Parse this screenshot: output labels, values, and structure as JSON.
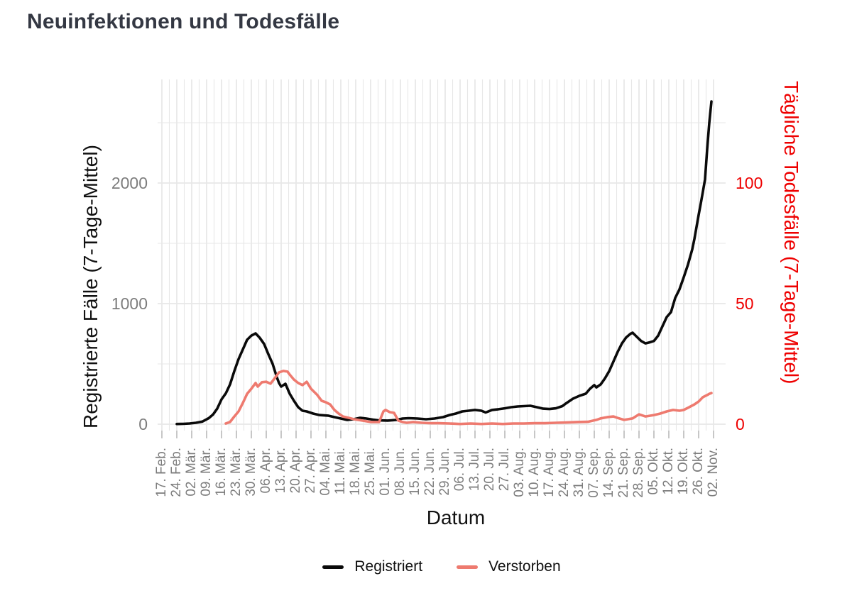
{
  "chart_data": {
    "type": "line",
    "title": "Neuinfektionen und Todesfälle",
    "x_axis": {
      "label": "Datum",
      "tick_labels": [
        "17. Feb.",
        "24. Feb.",
        "02. Mär.",
        "09. Mär.",
        "16. Mär.",
        "23. Mär.",
        "30. Mär.",
        "06. Apr.",
        "13. Apr.",
        "20. Apr.",
        "27. Apr.",
        "04. Mai.",
        "11. Mai.",
        "18. Mai.",
        "25. Mai.",
        "01. Jun.",
        "08. Jun.",
        "15. Jun.",
        "22. Jun.",
        "29. Jun.",
        "06. Jul.",
        "13. Jul.",
        "20. Jul.",
        "27. Jul.",
        "03. Aug.",
        "10. Aug.",
        "17. Aug.",
        "24. Aug.",
        "31. Aug.",
        "07. Sep.",
        "14. Sep.",
        "21. Sep.",
        "28. Sep.",
        "05. Okt.",
        "12. Okt.",
        "19. Okt.",
        "26. Okt.",
        "02. Nov."
      ],
      "unit": "x values are days since 17. Feb., ticks every 7 days"
    },
    "left_axis": {
      "label": "Registrierte Fälle (7-Tage-Mittel)",
      "ticks": [
        0,
        1000,
        2000
      ],
      "minor_gridlines": [
        500,
        1500,
        2500
      ],
      "range": [
        0,
        2900
      ],
      "color": "#111111",
      "tick_color": "#7d7d7d"
    },
    "right_axis": {
      "label": "Tägliche Todesfälle (7-Tage-Mittel)",
      "ticks": [
        0,
        50,
        100
      ],
      "range": [
        0,
        145
      ],
      "color": "#ee0000"
    },
    "grid": true,
    "grid_color": "#e7e7e7",
    "legend_position": "bottom",
    "series": [
      {
        "name": "Registriert",
        "axis": "left",
        "color": "#0a0a0a",
        "points": [
          [
            7,
            2
          ],
          [
            10,
            3
          ],
          [
            13,
            6
          ],
          [
            16,
            12
          ],
          [
            19,
            22
          ],
          [
            22,
            50
          ],
          [
            24,
            80
          ],
          [
            26,
            130
          ],
          [
            28,
            206
          ],
          [
            30,
            255
          ],
          [
            32,
            330
          ],
          [
            34,
            440
          ],
          [
            36,
            540
          ],
          [
            38,
            620
          ],
          [
            40,
            700
          ],
          [
            42,
            735
          ],
          [
            44,
            753
          ],
          [
            46,
            715
          ],
          [
            48,
            665
          ],
          [
            50,
            580
          ],
          [
            52,
            500
          ],
          [
            54,
            388
          ],
          [
            55,
            341
          ],
          [
            56,
            312
          ],
          [
            58,
            335
          ],
          [
            60,
            253
          ],
          [
            62,
            194
          ],
          [
            64,
            141
          ],
          [
            66,
            112
          ],
          [
            68,
            106
          ],
          [
            71,
            88
          ],
          [
            74,
            76
          ],
          [
            78,
            71
          ],
          [
            81,
            59
          ],
          [
            84,
            47
          ],
          [
            87,
            35
          ],
          [
            90,
            41
          ],
          [
            93,
            53
          ],
          [
            96,
            47
          ],
          [
            99,
            38
          ],
          [
            102,
            32
          ],
          [
            106,
            30
          ],
          [
            110,
            35
          ],
          [
            113,
            47
          ],
          [
            116,
            50
          ],
          [
            120,
            47
          ],
          [
            124,
            41
          ],
          [
            128,
            47
          ],
          [
            132,
            59
          ],
          [
            135,
            76
          ],
          [
            138,
            88
          ],
          [
            141,
            106
          ],
          [
            144,
            112
          ],
          [
            147,
            118
          ],
          [
            150,
            112
          ],
          [
            152,
            97
          ],
          [
            155,
            118
          ],
          [
            158,
            124
          ],
          [
            161,
            132
          ],
          [
            164,
            141
          ],
          [
            167,
            147
          ],
          [
            170,
            150
          ],
          [
            173,
            153
          ],
          [
            176,
            141
          ],
          [
            179,
            129
          ],
          [
            182,
            126
          ],
          [
            185,
            132
          ],
          [
            188,
            150
          ],
          [
            190,
            176
          ],
          [
            193,
            212
          ],
          [
            196,
            235
          ],
          [
            199,
            253
          ],
          [
            201,
            294
          ],
          [
            203,
            324
          ],
          [
            204,
            305
          ],
          [
            206,
            330
          ],
          [
            208,
            380
          ],
          [
            210,
            440
          ],
          [
            212,
            520
          ],
          [
            214,
            600
          ],
          [
            216,
            670
          ],
          [
            218,
            720
          ],
          [
            220,
            750
          ],
          [
            221,
            759
          ],
          [
            223,
            724
          ],
          [
            225,
            690
          ],
          [
            227,
            670
          ],
          [
            229,
            679
          ],
          [
            231,
            690
          ],
          [
            233,
            735
          ],
          [
            235,
            812
          ],
          [
            237,
            888
          ],
          [
            239,
            929
          ],
          [
            241,
            1047
          ],
          [
            243,
            1118
          ],
          [
            245,
            1218
          ],
          [
            247,
            1324
          ],
          [
            249,
            1450
          ],
          [
            250,
            1535
          ],
          [
            251,
            1635
          ],
          [
            252,
            1735
          ],
          [
            253,
            1830
          ],
          [
            254,
            1929
          ],
          [
            255,
            2030
          ],
          [
            256,
            2280
          ],
          [
            257,
            2500
          ],
          [
            258,
            2676
          ]
        ]
      },
      {
        "name": "Verstorben",
        "axis": "right",
        "color": "#ee7a6f",
        "points": [
          [
            30,
            0.3
          ],
          [
            32,
            0.9
          ],
          [
            34,
            3.2
          ],
          [
            36,
            5.3
          ],
          [
            38,
            8.8
          ],
          [
            40,
            12.6
          ],
          [
            42,
            14.7
          ],
          [
            44,
            17.1
          ],
          [
            45,
            15.6
          ],
          [
            47,
            17.4
          ],
          [
            49,
            17.6
          ],
          [
            51,
            16.8
          ],
          [
            53,
            19.1
          ],
          [
            55,
            21.5
          ],
          [
            57,
            22.1
          ],
          [
            59,
            21.8
          ],
          [
            60,
            20.6
          ],
          [
            62,
            18.5
          ],
          [
            64,
            17.1
          ],
          [
            66,
            16.2
          ],
          [
            68,
            17.6
          ],
          [
            70,
            14.7
          ],
          [
            73,
            12.1
          ],
          [
            75,
            9.7
          ],
          [
            77,
            9.1
          ],
          [
            79,
            8.2
          ],
          [
            81,
            5.9
          ],
          [
            83,
            4.4
          ],
          [
            85,
            3.2
          ],
          [
            88,
            2.6
          ],
          [
            90,
            2.1
          ],
          [
            94,
            1.5
          ],
          [
            98,
            0.9
          ],
          [
            102,
            0.9
          ],
          [
            104,
            5.3
          ],
          [
            105,
            5.9
          ],
          [
            107,
            5
          ],
          [
            109,
            4.7
          ],
          [
            111,
            1.5
          ],
          [
            113,
            0.9
          ],
          [
            115,
            0.6
          ],
          [
            118,
            0.9
          ],
          [
            122,
            0.6
          ],
          [
            126,
            0.4
          ],
          [
            130,
            0.4
          ],
          [
            135,
            0.3
          ],
          [
            140,
            0.1
          ],
          [
            145,
            0.3
          ],
          [
            150,
            0.1
          ],
          [
            155,
            0.3
          ],
          [
            160,
            0.1
          ],
          [
            165,
            0.3
          ],
          [
            170,
            0.3
          ],
          [
            175,
            0.4
          ],
          [
            180,
            0.4
          ],
          [
            185,
            0.6
          ],
          [
            190,
            0.7
          ],
          [
            195,
            0.9
          ],
          [
            200,
            1
          ],
          [
            204,
            1.8
          ],
          [
            206,
            2.4
          ],
          [
            209,
            2.9
          ],
          [
            212,
            3.2
          ],
          [
            214,
            2.6
          ],
          [
            217,
            1.8
          ],
          [
            219,
            2.1
          ],
          [
            221,
            2.4
          ],
          [
            224,
            4.1
          ],
          [
            227,
            3.2
          ],
          [
            229,
            3.5
          ],
          [
            231,
            3.8
          ],
          [
            234,
            4.4
          ],
          [
            237,
            5.3
          ],
          [
            240,
            5.9
          ],
          [
            243,
            5.6
          ],
          [
            245,
            5.9
          ],
          [
            247,
            6.8
          ],
          [
            250,
            8.2
          ],
          [
            252,
            9.4
          ],
          [
            254,
            11.2
          ],
          [
            256,
            12.1
          ],
          [
            257,
            12.6
          ],
          [
            258,
            12.9
          ]
        ]
      }
    ]
  }
}
